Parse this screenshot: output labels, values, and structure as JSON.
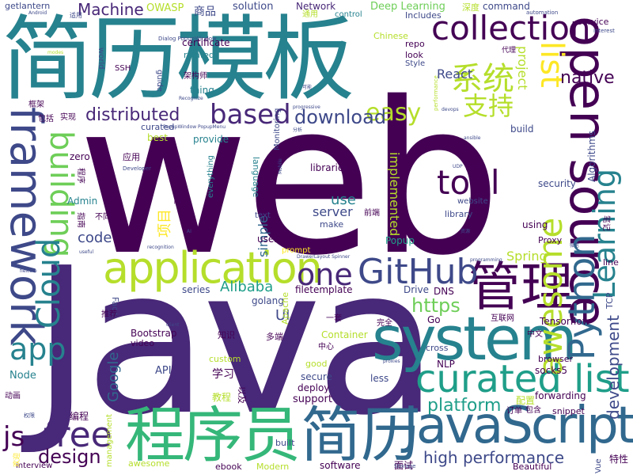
{
  "palette": {
    "dark": "#440154",
    "purple": "#482878",
    "indigo": "#3e4989",
    "blue": "#31688e",
    "teal": "#26828e",
    "cyan": "#1f9e89",
    "green": "#35b779",
    "lime": "#6ece58",
    "yellow_green": "#b5de2b",
    "yellow": "#fde725"
  },
  "words": [
    {
      "text": "web"
    },
    {
      "text": "Java"
    },
    {
      "text": "简历模板"
    },
    {
      "text": "open source"
    },
    {
      "text": "程序员"
    },
    {
      "text": "JavaScript"
    },
    {
      "text": "简历"
    },
    {
      "text": "system"
    },
    {
      "text": "application"
    },
    {
      "text": "framework"
    },
    {
      "text": "管理"
    },
    {
      "text": "curated list"
    },
    {
      "text": "collection"
    },
    {
      "text": "Python"
    },
    {
      "text": "Learning"
    },
    {
      "text": "GitHub"
    },
    {
      "text": "tool"
    },
    {
      "text": "awesome"
    },
    {
      "text": "list"
    },
    {
      "text": "系统"
    },
    {
      "text": "支持"
    },
    {
      "text": "building"
    },
    {
      "text": "Cloud"
    },
    {
      "text": "free"
    },
    {
      "text": "one"
    },
    {
      "text": "app"
    },
    {
      "text": "based"
    },
    {
      "text": "easy"
    },
    {
      "text": "download"
    },
    {
      "text": "distributed"
    },
    {
      "text": "design"
    },
    {
      "text": "js"
    },
    {
      "text": "high performance"
    },
    {
      "text": "platform"
    },
    {
      "text": "development"
    },
    {
      "text": "https"
    },
    {
      "text": "Machine"
    },
    {
      "text": "native"
    },
    {
      "text": "React"
    },
    {
      "text": "project"
    },
    {
      "text": "implemented"
    },
    {
      "text": "server"
    },
    {
      "text": "use"
    },
    {
      "text": "simple"
    },
    {
      "text": "Alibaba"
    },
    {
      "text": "Google"
    },
    {
      "text": "Spring"
    },
    {
      "text": "UI"
    },
    {
      "text": "code"
    },
    {
      "text": "项目"
    },
    {
      "text": "Deep Learning"
    },
    {
      "text": "Network"
    },
    {
      "text": "solution"
    },
    {
      "text": "OWASP"
    },
    {
      "text": "商品"
    },
    {
      "text": "getlantern"
    },
    {
      "text": "command"
    },
    {
      "text": "深度"
    },
    {
      "text": "Includes"
    },
    {
      "text": "automation"
    },
    {
      "text": "control"
    },
    {
      "text": "通用"
    },
    {
      "text": "适用"
    },
    {
      "text": "Dialog PopupWindow"
    },
    {
      "text": "service"
    },
    {
      "text": "interest"
    },
    {
      "text": "certificate"
    },
    {
      "text": "Chinese"
    },
    {
      "text": "repo"
    },
    {
      "text": "look"
    },
    {
      "text": "代理"
    },
    {
      "text": "Style"
    },
    {
      "text": "SSH"
    },
    {
      "text": "world"
    },
    {
      "text": "related"
    },
    {
      "text": "架构师"
    },
    {
      "text": "guide"
    },
    {
      "text": "thing"
    },
    {
      "text": "Recognize"
    },
    {
      "text": "框架"
    },
    {
      "text": "包括"
    },
    {
      "text": "实现"
    },
    {
      "text": "curated"
    },
    {
      "text": "PopupWindow PopupMenu"
    },
    {
      "text": "best"
    },
    {
      "text": "provide"
    },
    {
      "text": "zero"
    },
    {
      "text": "应用"
    },
    {
      "text": "Developer"
    },
    {
      "text": "Admin"
    },
    {
      "text": "不同"
    },
    {
      "text": "程序"
    },
    {
      "text": "指南"
    },
    {
      "text": "流程"
    },
    {
      "text": "everything"
    },
    {
      "text": "language"
    },
    {
      "text": "libraries"
    },
    {
      "text": "text"
    },
    {
      "text": "Monitoring"
    },
    {
      "text": "Mobile"
    },
    {
      "text": "build"
    },
    {
      "text": "fast"
    },
    {
      "text": "security"
    },
    {
      "text": "website"
    },
    {
      "text": "library"
    },
    {
      "text": "make"
    },
    {
      "text": "using"
    },
    {
      "text": "Proxy"
    },
    {
      "text": "前端"
    },
    {
      "text": "Popup"
    },
    {
      "text": "user"
    },
    {
      "text": "prompt"
    },
    {
      "text": "DrawerLayout Spinner"
    },
    {
      "text": "Algorithms"
    },
    {
      "text": "笔记"
    },
    {
      "text": "line"
    },
    {
      "text": "TCP"
    },
    {
      "text": "DNS"
    },
    {
      "text": "Drive"
    },
    {
      "text": "filetemplate"
    },
    {
      "text": "golang"
    },
    {
      "text": "series"
    },
    {
      "text": "Apache"
    },
    {
      "text": "Face"
    },
    {
      "text": "推荐"
    },
    {
      "text": "Bootstrap"
    },
    {
      "text": "video"
    },
    {
      "text": "知识"
    },
    {
      "text": "多端"
    },
    {
      "text": "一套"
    },
    {
      "text": "中心"
    },
    {
      "text": "Container"
    },
    {
      "text": "Go"
    },
    {
      "text": "cross"
    },
    {
      "text": "NLP"
    },
    {
      "text": "中文"
    },
    {
      "text": "互联网"
    },
    {
      "text": "Tensorflow"
    },
    {
      "text": "browser"
    },
    {
      "text": "API"
    },
    {
      "text": "custom"
    },
    {
      "text": "学习"
    },
    {
      "text": "good"
    },
    {
      "text": "less"
    },
    {
      "text": "secure"
    },
    {
      "text": "deploy"
    },
    {
      "text": "socks5"
    },
    {
      "text": "forwarding"
    },
    {
      "text": "Node"
    },
    {
      "text": "教程"
    },
    {
      "text": "以及"
    },
    {
      "text": "support"
    },
    {
      "text": "配置"
    },
    {
      "text": "snippet"
    },
    {
      "text": "编程"
    },
    {
      "text": "management"
    },
    {
      "text": "built"
    },
    {
      "text": "面试"
    },
    {
      "text": "software"
    },
    {
      "text": "Modern"
    },
    {
      "text": "ebook"
    },
    {
      "text": "awesome"
    },
    {
      "text": "interview"
    },
    {
      "text": "Beautiful"
    },
    {
      "text": "特性"
    },
    {
      "text": "Vue"
    },
    {
      "text": "包含"
    },
    {
      "text": "完全"
    },
    {
      "text": "订单"
    },
    {
      "text": "Storage"
    },
    {
      "text": "欢迎"
    },
    {
      "text": "动画"
    },
    {
      "text": "权限"
    },
    {
      "text": "flexible"
    },
    {
      "text": "useful"
    },
    {
      "text": "recognition"
    },
    {
      "text": "programming"
    },
    {
      "text": "client"
    },
    {
      "text": "proxies"
    },
    {
      "text": "UDP"
    },
    {
      "text": "资源"
    },
    {
      "text": "分析"
    },
    {
      "text": "devops"
    },
    {
      "text": "progressive"
    },
    {
      "text": "Android"
    },
    {
      "text": "performance"
    },
    {
      "text": "可能"
    },
    {
      "text": "ansible"
    },
    {
      "text": "modes"
    },
    {
      "text": "微信"
    },
    {
      "text": "AI"
    }
  ]
}
